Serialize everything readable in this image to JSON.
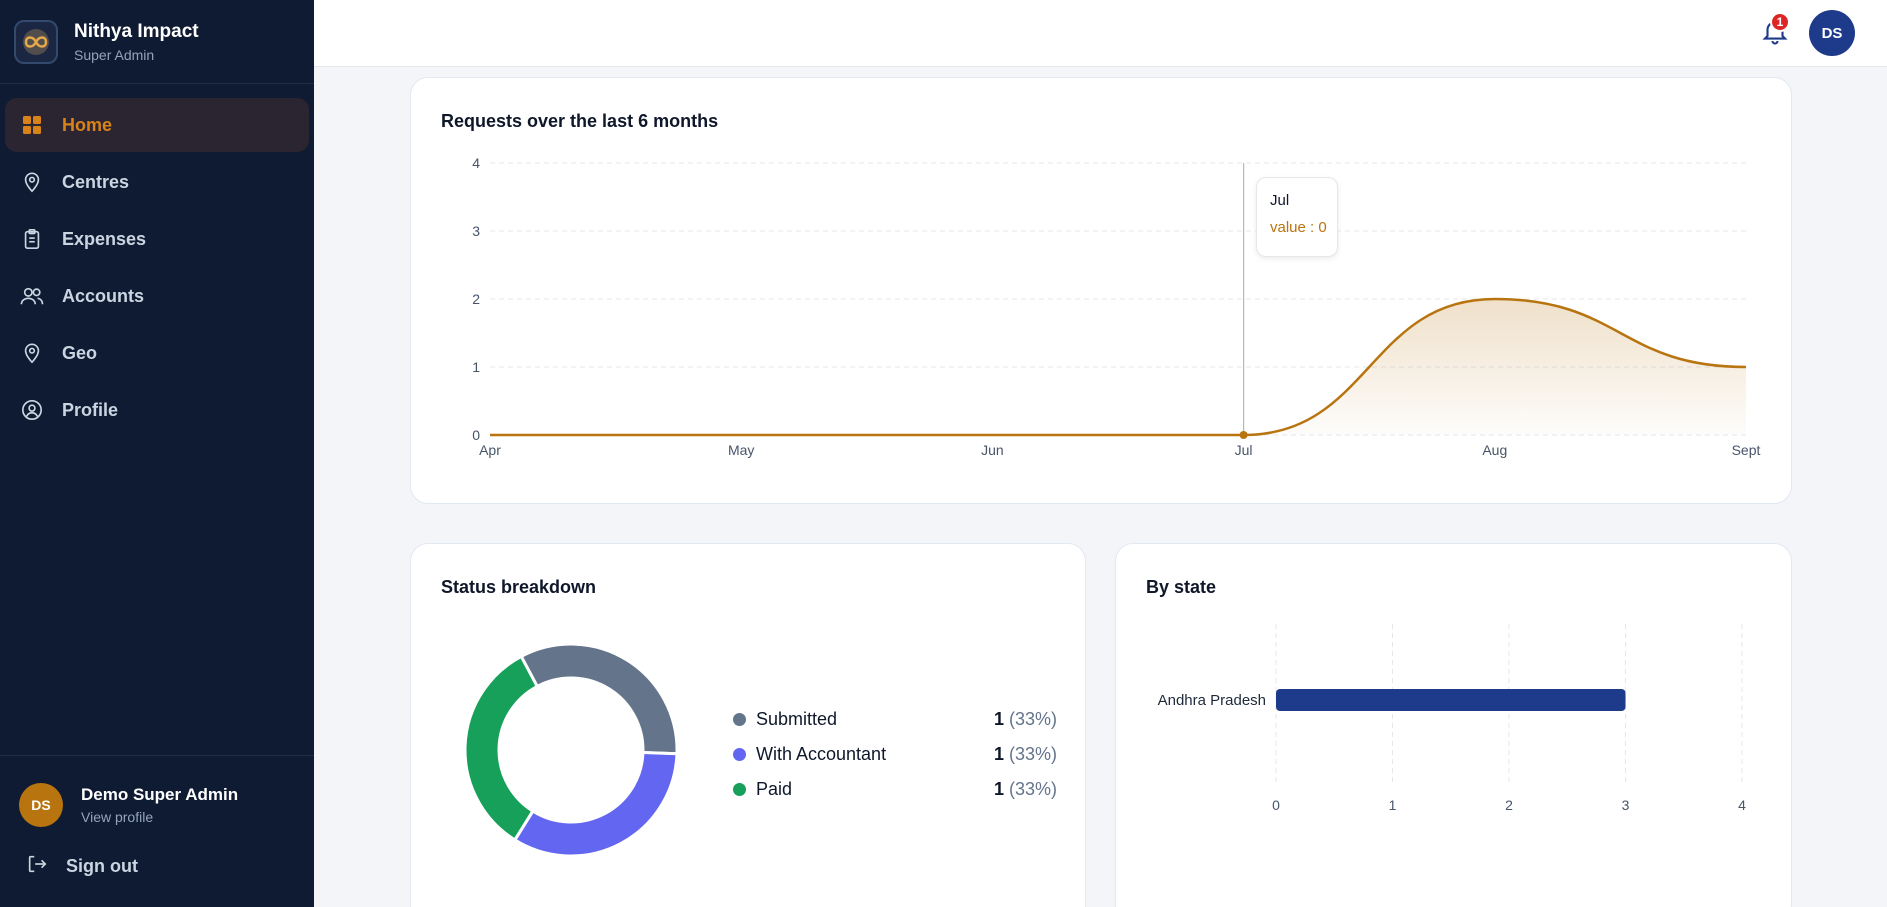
{
  "brand": {
    "name": "Nithya Impact",
    "role": "Super Admin"
  },
  "nav": [
    {
      "label": "Home",
      "icon": "grid-icon",
      "active": true
    },
    {
      "label": "Centres",
      "icon": "map-pin-icon",
      "active": false
    },
    {
      "label": "Expenses",
      "icon": "clipboard-icon",
      "active": false
    },
    {
      "label": "Accounts",
      "icon": "users-icon",
      "active": false
    },
    {
      "label": "Geo",
      "icon": "map-pin-icon",
      "active": false
    },
    {
      "label": "Profile",
      "icon": "user-circle-icon",
      "active": false
    }
  ],
  "user": {
    "initials": "DS",
    "name": "Demo Super Admin",
    "link": "View profile"
  },
  "signout": {
    "label": "Sign out"
  },
  "topbar": {
    "notifications": "1",
    "avatar_initials": "DS"
  },
  "colors": {
    "accent": "#b8740f",
    "sidebar": "#0f1b33",
    "navy": "#1e3a8a"
  },
  "requests": {
    "title": "Requests over the last 6 months",
    "tooltip": {
      "label": "Jul",
      "value_text": "value : 0"
    }
  },
  "status": {
    "title": "Status breakdown",
    "items": [
      {
        "name": "Submitted",
        "count": "1",
        "pct": "(33%)",
        "color": "#64748b"
      },
      {
        "name": "With Accountant",
        "count": "1",
        "pct": "(33%)",
        "color": "#6366f1"
      },
      {
        "name": "Paid",
        "count": "1",
        "pct": "(33%)",
        "color": "#16a05a"
      }
    ]
  },
  "by_state": {
    "title": "By state"
  },
  "chart_data": [
    {
      "type": "area",
      "title": "Requests over the last 6 months",
      "categories": [
        "Apr",
        "May",
        "Jun",
        "Jul",
        "Aug",
        "Sept"
      ],
      "values": [
        0,
        0,
        0,
        0,
        2,
        1
      ],
      "yticks": [
        0,
        1,
        2,
        3,
        4
      ],
      "ylim": [
        0,
        4
      ],
      "color": "#b8740f",
      "grid": true
    },
    {
      "type": "pie",
      "title": "Status breakdown",
      "labels": [
        "Submitted",
        "With Accountant",
        "Paid"
      ],
      "values": [
        1,
        1,
        1
      ],
      "colors": [
        "#64748b",
        "#6366f1",
        "#16a05a"
      ]
    },
    {
      "type": "bar",
      "orientation": "horizontal",
      "title": "By state",
      "categories": [
        "Andhra Pradesh"
      ],
      "values": [
        3
      ],
      "xticks": [
        0,
        1,
        2,
        3,
        4
      ],
      "xlim": [
        0,
        4
      ],
      "color": "#1e3a8a",
      "grid": true
    }
  ]
}
